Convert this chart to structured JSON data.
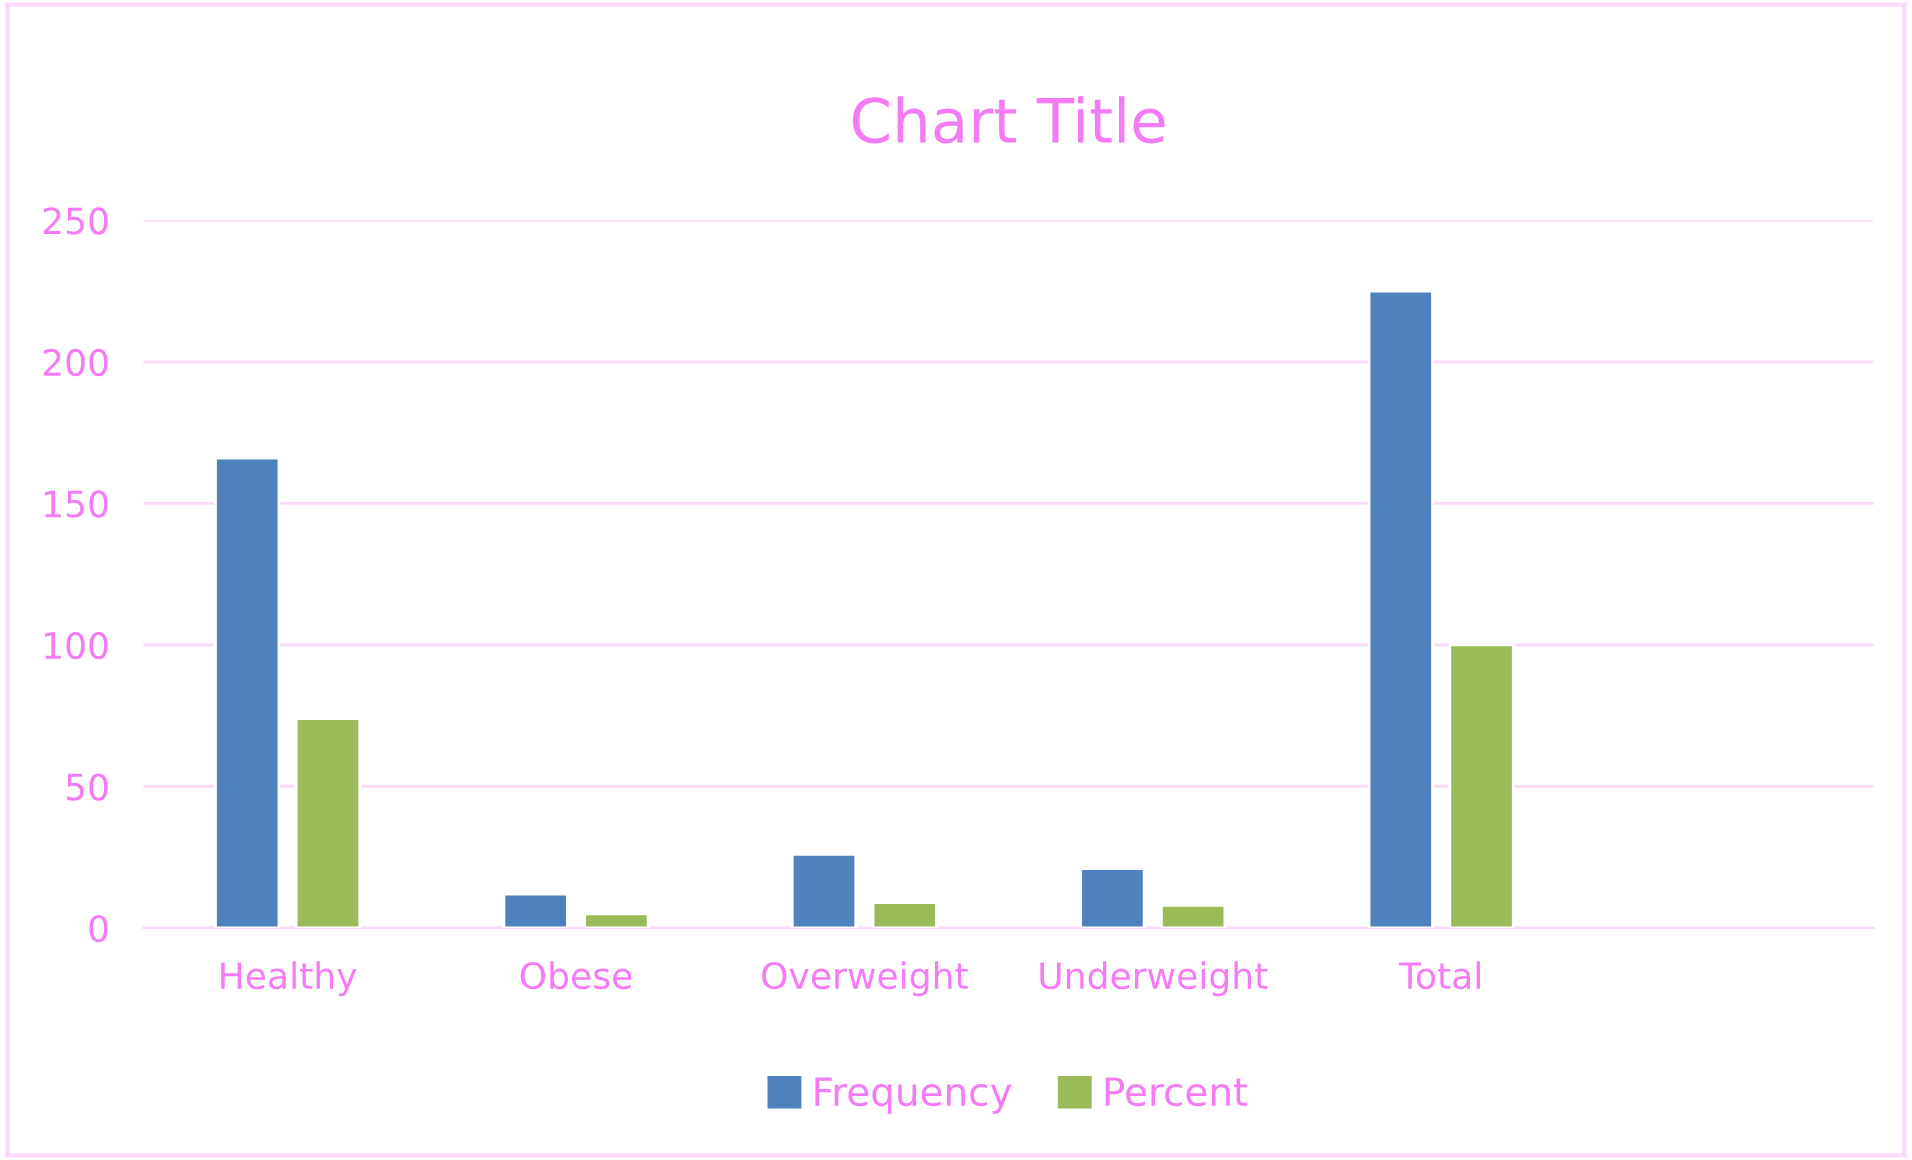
{
  "chart_data": {
    "type": "bar",
    "title": "Chart Title",
    "categories": [
      "Healthy",
      "Obese",
      "Overweight",
      "Underweight",
      "Total",
      null
    ],
    "series": [
      {
        "name": "Frequency",
        "color": "#4f81bd",
        "values": [
          166,
          12,
          26,
          21,
          225,
          null
        ]
      },
      {
        "name": "Percent",
        "color": "#9bbb59",
        "values": [
          74,
          5,
          9,
          8,
          100,
          null
        ]
      }
    ],
    "ylim": [
      0,
      250
    ],
    "yticks": [
      0,
      50,
      100,
      150,
      200,
      250
    ],
    "grid": "y",
    "legend": "bottom"
  }
}
